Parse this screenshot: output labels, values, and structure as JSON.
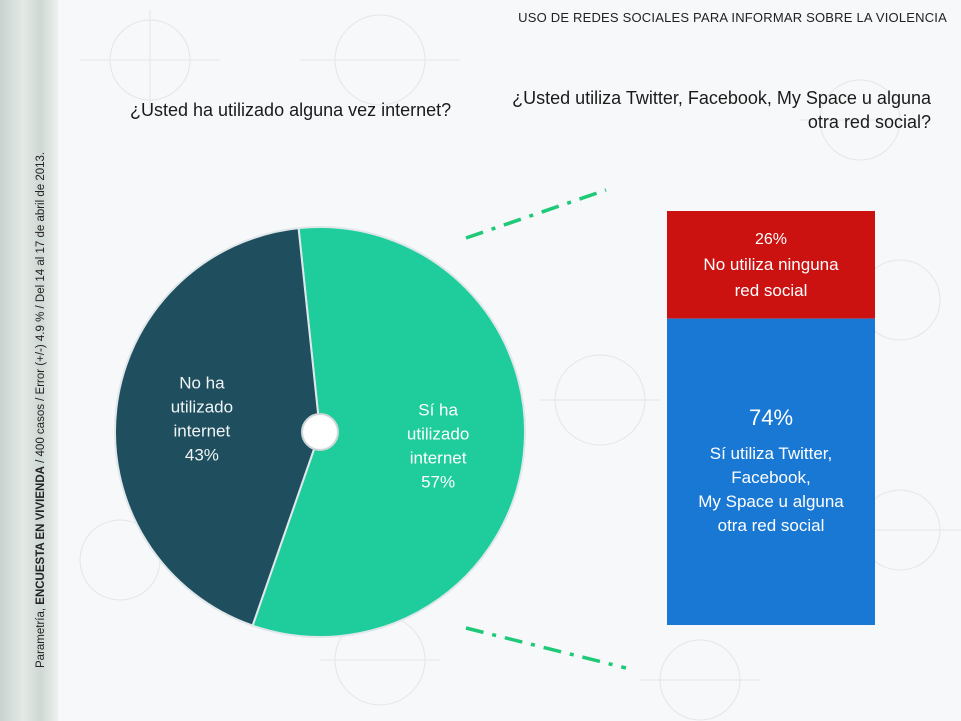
{
  "header": {
    "title": "USO DE REDES SOCIALES PARA INFORMAR SOBRE LA VIOLENCIA"
  },
  "source_note": {
    "pre": "Parametría, ",
    "bold": "ENCUESTA EN VIVIENDA",
    "post": " / 400 casos / Error (+/-) 4.9 % / Del 14 al 17 de abril de 2013."
  },
  "left_question": "¿Usted ha utilizado alguna vez internet?",
  "right_question": "¿Usted utiliza Twitter, Facebook, My Space u alguna otra red social?",
  "colors": {
    "dark_slice": "#1f4e5f",
    "teal_slice": "#1fcc9c",
    "red_bar": "#cc1111",
    "blue_bar": "#1878d4",
    "connector": "#1ec978"
  },
  "chart_data": [
    {
      "type": "pie",
      "title": "¿Usted ha utilizado alguna vez internet?",
      "slices": [
        {
          "label_lines": [
            "Sí ha",
            "utilizado",
            "internet",
            "57%"
          ],
          "value": 57
        },
        {
          "label_lines": [
            "No ha",
            "utilizado",
            "internet",
            "43%"
          ],
          "value": 43
        }
      ]
    },
    {
      "type": "bar",
      "stacked": true,
      "title": "¿Usted utiliza Twitter, Facebook, My Space u alguna otra red social?",
      "segments": [
        {
          "value": 26,
          "pct_label": "26%",
          "label_lines": [
            "No utiliza ninguna",
            "red social"
          ]
        },
        {
          "value": 74,
          "pct_label": "74%",
          "label_lines": [
            "Sí utiliza Twitter,",
            "Facebook,",
            "My Space u alguna",
            "otra red social"
          ]
        }
      ]
    }
  ]
}
